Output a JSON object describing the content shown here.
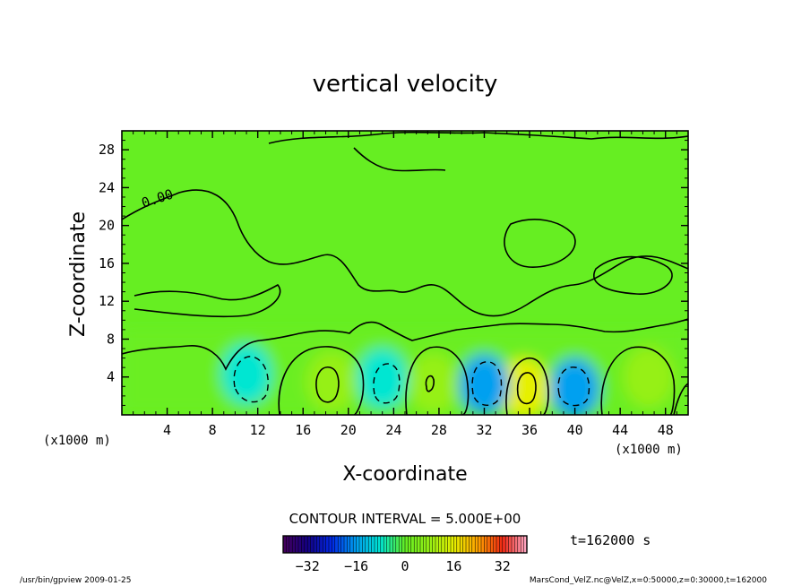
{
  "chart_data": {
    "type": "heatmap",
    "title": "vertical velocity",
    "xlabel": "X-coordinate",
    "ylabel": "Z-coordinate",
    "x_unit_left": "(x1000 m)",
    "x_unit_right": "(x1000 m)",
    "xlim": [
      0,
      50
    ],
    "ylim": [
      0,
      30
    ],
    "x_ticks": [
      "4",
      "8",
      "12",
      "16",
      "20",
      "24",
      "28",
      "32",
      "36",
      "40",
      "44",
      "48"
    ],
    "y_ticks": [
      "4",
      "8",
      "12",
      "16",
      "20",
      "24",
      "28"
    ],
    "x_tick_values": [
      4,
      8,
      12,
      16,
      20,
      24,
      28,
      32,
      36,
      40,
      44,
      48
    ],
    "y_tick_values": [
      4,
      8,
      12,
      16,
      20,
      24,
      28
    ],
    "contour_label": "0.00",
    "contour_interval_text": "CONTOUR INTERVAL = 5.000E+00",
    "time_text": "t=162000 s",
    "colorbar_ticks": [
      "−32",
      "−16",
      "0",
      "16",
      "32"
    ],
    "colorbar_tick_values": [
      -32,
      -16,
      0,
      16,
      32
    ],
    "colorbar_range": [
      -40,
      40
    ],
    "cells": [
      {
        "x": 18.5,
        "z": 3.5,
        "w": 5.0
      },
      {
        "x": 27.5,
        "z": 3.3,
        "w": 5.0
      },
      {
        "x": 35.5,
        "z": 2.8,
        "w": 10.0
      },
      {
        "x": 46.5,
        "z": 4.0,
        "w": 5.0
      },
      {
        "x": 11.0,
        "z": 4.3,
        "w": -5.0
      },
      {
        "x": 23.0,
        "z": 3.8,
        "w": -5.0
      },
      {
        "x": 32.0,
        "z": 3.2,
        "w": -10.0
      },
      {
        "x": 40.0,
        "z": 2.8,
        "w": -10.0
      }
    ],
    "footer_left": "/usr/bin/gpview   2009-01-25",
    "footer_right": "MarsCond_VelZ.nc@VelZ,x=0:50000,z=0:30000,t=162000"
  }
}
